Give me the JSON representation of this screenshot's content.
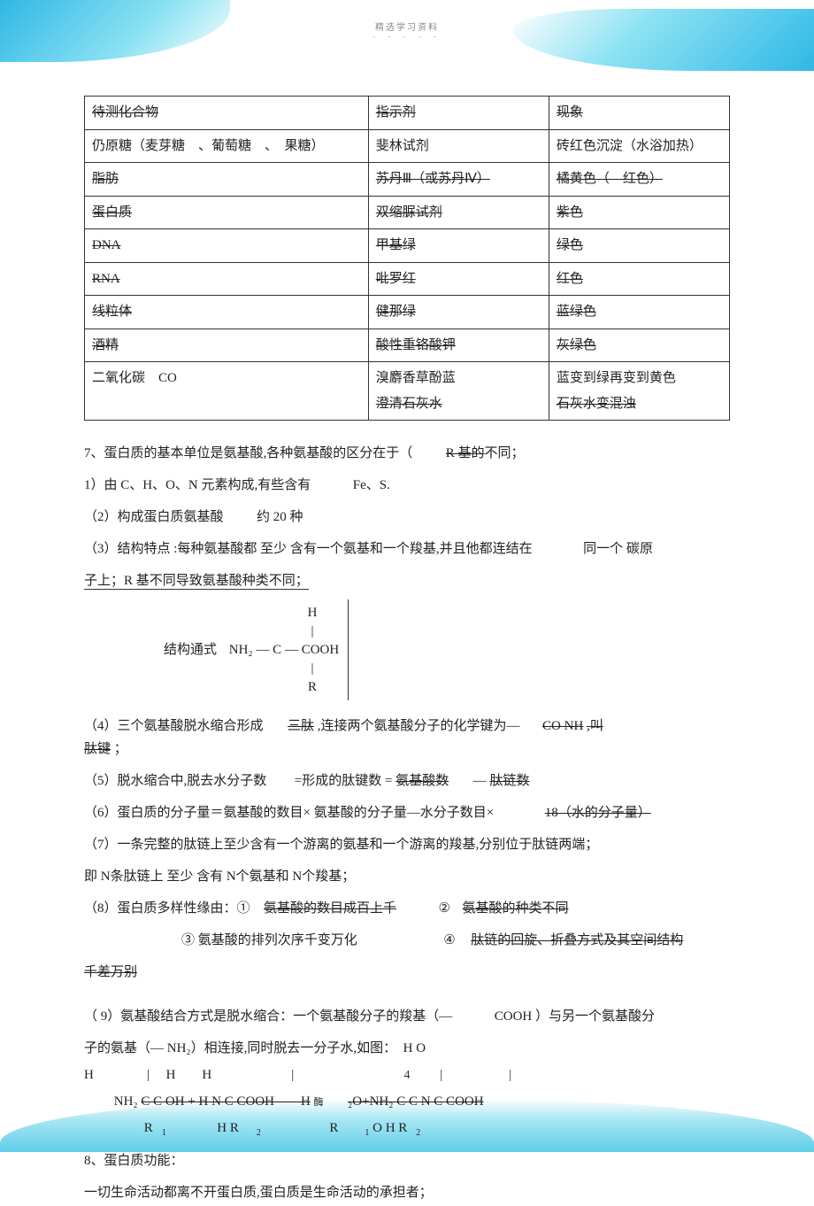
{
  "header": {
    "small": "精选学习资料",
    "dashes": "- - -  - -"
  },
  "table": {
    "rows": [
      {
        "c1": "待测化合物",
        "s1": true,
        "c2": "指示剂",
        "s2": true,
        "c3": "现象",
        "s3": true
      },
      {
        "c1": "仍原糖（麦芽糖　、葡萄糖　、　果糖）",
        "s1": false,
        "c2": "斐林试剂",
        "s2": false,
        "c3": "砖红色沉淀（水浴加热）",
        "s3": false
      },
      {
        "c1": "脂肪",
        "s1": true,
        "c2": "苏丹Ⅲ（或苏丹Ⅳ）",
        "s2": true,
        "c3": "橘黄色（　红色）",
        "s3": true
      },
      {
        "c1": "蛋白质",
        "s1": true,
        "c2": "双缩脲试剂",
        "s2": true,
        "c3": "紫色",
        "s3": true
      },
      {
        "c1": "DNA",
        "s1": true,
        "c2": "甲基绿",
        "s2": true,
        "c3": "绿色",
        "s3": true
      },
      {
        "c1": "RNA",
        "s1": true,
        "c2": "吡罗红",
        "s2": true,
        "c3": "红色",
        "s3": true
      },
      {
        "c1": "线粒体",
        "s1": true,
        "c2": "健那绿",
        "s2": true,
        "c3": "蓝绿色",
        "s3": true
      },
      {
        "c1": "酒精",
        "s1": true,
        "c2": "酸性重铬酸钾",
        "s2": true,
        "c3": "灰绿色",
        "s3": true
      },
      {
        "c1a": "二氧化碳　CO",
        "c1a_s": false,
        "c2a": "溴麝香草酚蓝",
        "c2a_s": false,
        "c3a": "蓝变到绿再变到黄色",
        "c3a_s": false,
        "c2b": "澄清石灰水",
        "c2b_s": true,
        "c3b": "石灰水变混浊",
        "c3b_s": true
      }
    ]
  },
  "body": {
    "l7": "7、蛋白质的基本单位是氨基酸,各种氨基酸的区分在于（",
    "l7_ans": "R 基的",
    "l7_end": "不同；",
    "l7_1": "1）由 C、H、O、N 元素构成,有些含有",
    "l7_1_ans": "Fe、S.",
    "l7_2a": "（2）构成蛋白质氨基酸",
    "l7_2b": "约 20 种",
    "l7_3": "（3）结构特点 :每种氨基酸都 至少 含有一个氨基和一个羧基,并且他都连结在",
    "l7_3_ans": "同一个 碳",
    "l7_3_end": "原",
    "l7_3_line2": "子上；R 基不同导致氨基酸种类不同；",
    "formula_label": "结构通式",
    "formula": {
      "top": "H",
      "mid_l": "NH₂ —",
      "mid_c": "C",
      "mid_r": "— COOH",
      "bot": "R"
    },
    "l7_4a": "（4）三个氨基酸脱水缩合形成",
    "l7_4b": "三肽",
    "l7_4c": ",连接两个氨基酸分子的化学键为—",
    "l7_4d": "CO  NH",
    "l7_4e": ",叫",
    "l7_4f": "肽键",
    "l7_4g": "；",
    "l7_5a": "（5）脱水缩合中,脱去水分子数",
    "l7_5b": "=形成的肽键数 =",
    "l7_5c": "氨基酸数",
    "l7_5d": "—",
    "l7_5e": "肽链数",
    "l7_6a": "（6）蛋白质的分子量＝氨基酸的数目× 氨基酸的分子量—水分子数目×",
    "l7_6b": "18（水的分子量）",
    "l7_7": "（7）一条完整的肽链上至少含有一个游离的氨基和一个游离的羧基,分别位于肽链两端；",
    "l7_7b": "即 N条肽链上 至少 含有  N个氨基和  N个羧基；",
    "l7_8a": "（8）蛋白质多样性缘由：①",
    "l7_8b": "氨基酸的数目成百上千",
    "l7_8c": "②",
    "l7_8d": "氨基酸的种类不同",
    "l7_8e": "③ 氨基酸的排列次序千变万化",
    "l7_8f": "④",
    "l7_8g": "肽链的回旋、折叠方式及其空间结构",
    "l7_8h": "千差万别",
    "l7_9a": "（ 9）氨基酸结合方式是脱水缩合：一个氨基酸分子的羧基（—",
    "l7_9b": "COOH",
    "l7_9c": "）与另一个氨基酸分",
    "l7_9d": "子的氨基（— NH₂）相连接,同时脱去一分子水,如图：　H  O",
    "chain_hrow": "H　　　　|　 H　　H　　　　　　|　　　　　　　　　　　|　　　　　|",
    "chain_main_a": "NH₂",
    "chain_main_b": "C   C   OH  +  H   N   C   COOH　　H",
    "chain_enzyme": "酶",
    "chain_main_c": "₂O+NH₂   C   C   N   C   COOH",
    "chain_rrow_a": "R",
    "chain_rrow_b": "H R",
    "chain_rrow_c": "R",
    "chain_rrow_d": "O H R",
    "l8": "8、蛋白质功能：",
    "l8b": "一切生命活动都离不开蛋白质,蛋白质是生命活动的承担者；"
  },
  "page_number": "4"
}
